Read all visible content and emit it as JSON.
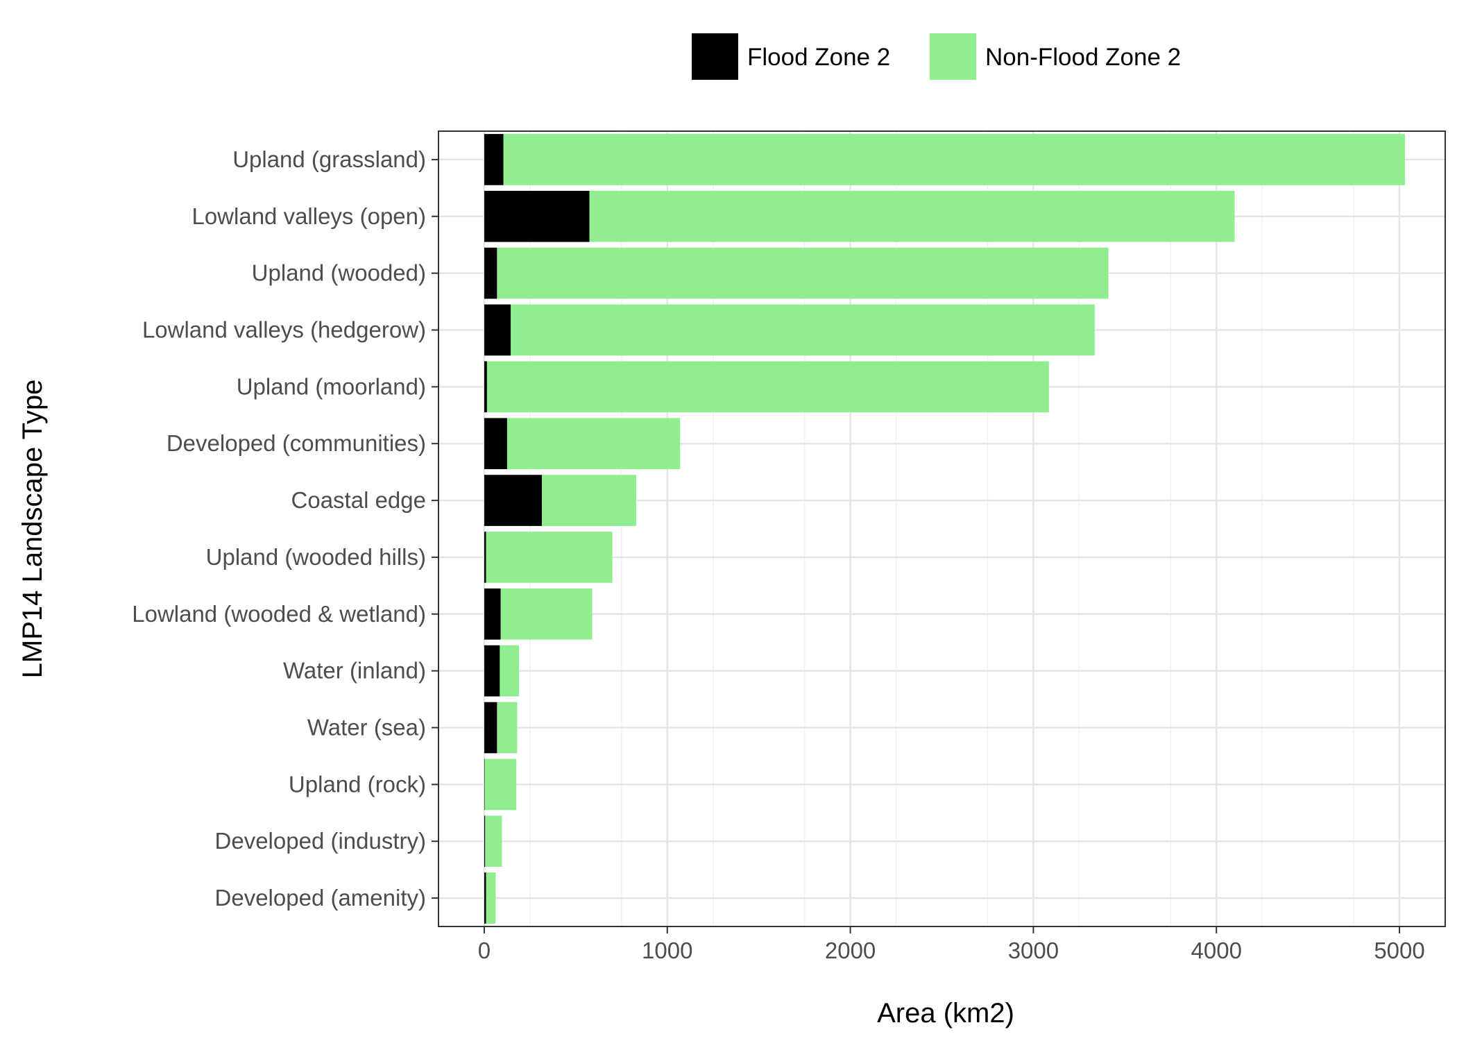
{
  "chart_data": {
    "type": "bar",
    "orientation": "horizontal",
    "stacked": true,
    "title": "",
    "xlabel": "Area (km2)",
    "ylabel": "LMP14 Landscape Type",
    "xlim": [
      -250,
      5250
    ],
    "x_ticks": [
      0,
      1000,
      2000,
      3000,
      4000,
      5000
    ],
    "grid": true,
    "legend_position": "top",
    "categories": [
      "Upland (grassland)",
      "Lowland valleys (open)",
      "Upland (wooded)",
      "Lowland valleys (hedgerow)",
      "Upland (moorland)",
      "Developed (communities)",
      "Coastal edge",
      "Upland (wooded hills)",
      "Lowland (wooded & wetland)",
      "Water (inland)",
      "Water (sea)",
      "Upland (rock)",
      "Developed (industry)",
      "Developed (amenity)"
    ],
    "series": [
      {
        "name": "Flood Zone 2",
        "color": "#000000",
        "values": [
          105,
          575,
          70,
          145,
          15,
          125,
          315,
          10,
          90,
          85,
          70,
          2,
          5,
          10
        ]
      },
      {
        "name": "Non-Flood Zone 2",
        "color": "#90EE90",
        "values": [
          4925,
          3525,
          3340,
          3190,
          3070,
          945,
          515,
          690,
          500,
          105,
          110,
          173,
          92,
          52
        ]
      }
    ]
  }
}
